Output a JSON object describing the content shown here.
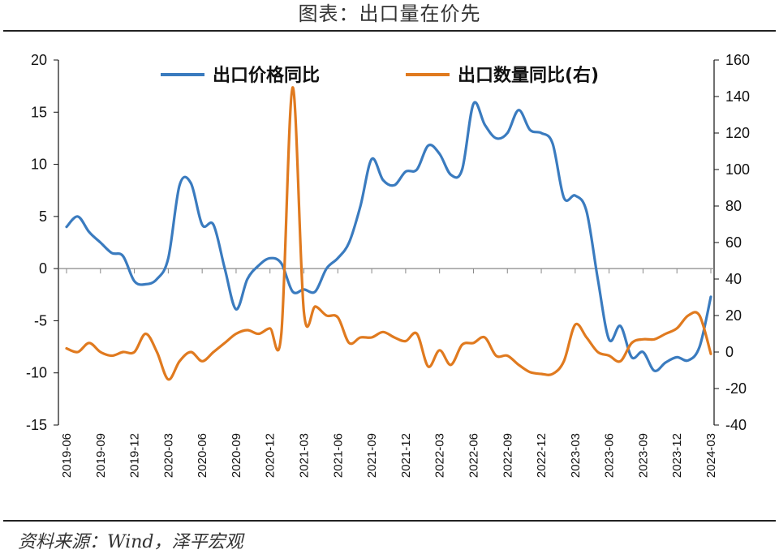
{
  "header": {
    "title": "图表：出口量在价先"
  },
  "footer": {
    "source": "资料来源：Wind，泽平宏观"
  },
  "chart_data": {
    "type": "line",
    "title": "图表：出口量在价先",
    "xlabel": "",
    "ylabel": "",
    "ylim": [
      -15,
      20
    ],
    "y2lim": [
      -40,
      160
    ],
    "yticks": [
      20,
      15,
      10,
      5,
      0,
      -5,
      -10,
      -15
    ],
    "y2ticks": [
      160,
      140,
      120,
      100,
      80,
      60,
      40,
      20,
      0,
      -20,
      -40
    ],
    "x_tick_labels": [
      "2019-06",
      "2019-09",
      "2019-12",
      "2020-03",
      "2020-06",
      "2020-09",
      "2020-12",
      "2021-03",
      "2021-06",
      "2021-09",
      "2021-12",
      "2022-03",
      "2022-06",
      "2022-09",
      "2022-12",
      "2023-03",
      "2023-06",
      "2023-09",
      "2023-12",
      "2024-03"
    ],
    "legend_placement": "top",
    "x": [
      "2019-06",
      "2019-07",
      "2019-08",
      "2019-09",
      "2019-10",
      "2019-11",
      "2019-12",
      "2020-01",
      "2020-02",
      "2020-03",
      "2020-04",
      "2020-05",
      "2020-06",
      "2020-07",
      "2020-08",
      "2020-09",
      "2020-10",
      "2020-11",
      "2020-12",
      "2021-01",
      "2021-02",
      "2021-03",
      "2021-04",
      "2021-05",
      "2021-06",
      "2021-07",
      "2021-08",
      "2021-09",
      "2021-10",
      "2021-11",
      "2021-12",
      "2022-01",
      "2022-02",
      "2022-03",
      "2022-04",
      "2022-05",
      "2022-06",
      "2022-07",
      "2022-08",
      "2022-09",
      "2022-10",
      "2022-11",
      "2022-12",
      "2023-01",
      "2023-02",
      "2023-03",
      "2023-04",
      "2023-05",
      "2023-06",
      "2023-07",
      "2023-08",
      "2023-09",
      "2023-10",
      "2023-11",
      "2023-12",
      "2024-01",
      "2024-02",
      "2024-03"
    ],
    "series": [
      {
        "name": "出口价格同比",
        "axis": "left",
        "color": "#3a7bbf",
        "values": [
          4.0,
          5.0,
          3.5,
          2.5,
          1.5,
          1.2,
          -1.2,
          -1.5,
          -1.0,
          1.0,
          8.0,
          8.2,
          4.2,
          4.2,
          0.0,
          -3.9,
          -1.0,
          0.3,
          1.0,
          0.5,
          -2.2,
          -2.0,
          -2.2,
          0.0,
          1.0,
          2.5,
          6.0,
          10.5,
          8.5,
          8.0,
          9.3,
          9.5,
          11.8,
          11.0,
          9.0,
          9.5,
          15.8,
          13.8,
          12.5,
          13.0,
          15.2,
          13.3,
          13.0,
          12.0,
          6.8,
          7.0,
          5.5,
          -1.0,
          -6.8,
          -5.5,
          -8.5,
          -8.0,
          -9.8,
          -9.0,
          -8.5,
          -8.8,
          -7.5,
          -2.7
        ]
      },
      {
        "name": "出口数量同比(右)",
        "axis": "right",
        "color": "#e07a1f",
        "values": [
          2,
          0,
          5,
          0,
          -2,
          0,
          0,
          10,
          0,
          -15,
          -5,
          0,
          -5,
          0,
          5,
          10,
          12,
          10,
          13,
          10,
          145,
          22,
          25,
          20,
          19,
          5,
          8,
          8,
          11,
          8,
          6,
          10,
          -8,
          1,
          -7,
          4,
          5,
          8,
          -2,
          -2,
          -7,
          -11,
          -12,
          -12,
          -5,
          15,
          8,
          0,
          -2,
          -5,
          5,
          7,
          7,
          10,
          13,
          20,
          20,
          -1
        ]
      }
    ]
  }
}
